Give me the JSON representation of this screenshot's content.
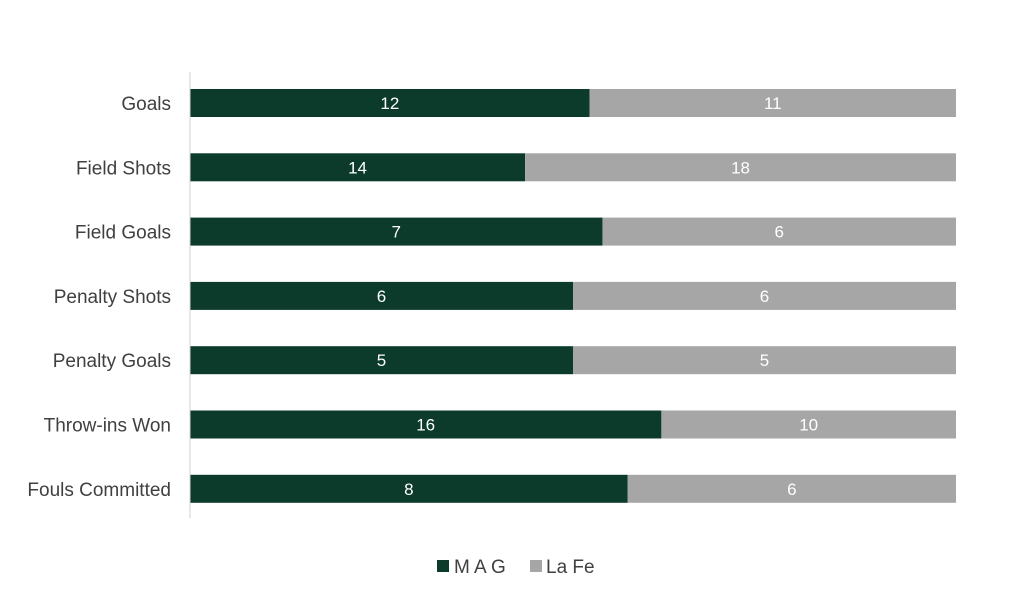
{
  "chart_data": {
    "type": "bar",
    "orientation": "horizontal",
    "stacking": "percent",
    "categories": [
      "Goals",
      "Field Shots",
      "Field Goals",
      "Penalty Shots",
      "Penalty Goals",
      "Throw-ins Won",
      "Fouls Committed"
    ],
    "series": [
      {
        "name": "M A G",
        "color": "#0c3b2b",
        "values": [
          12,
          14,
          7,
          6,
          5,
          16,
          8
        ]
      },
      {
        "name": "La Fe",
        "color": "#a6a6a6",
        "values": [
          11,
          18,
          6,
          6,
          5,
          10,
          6
        ]
      }
    ],
    "data_labels": true,
    "grid": false,
    "legend_position": "bottom"
  }
}
